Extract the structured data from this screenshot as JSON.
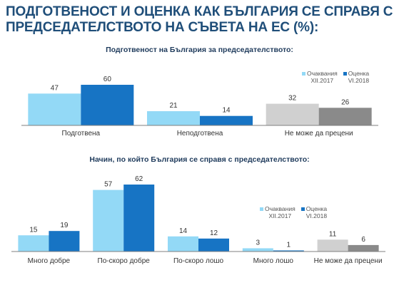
{
  "title": {
    "line1": "ПОДГОТВЕНОСТ И ОЦЕНКА КАК БЪЛГАРИЯ СЕ СПРАВЯ С",
    "line2": "ПРЕДСЕДАТЕЛСТВОТО НА СЪВЕТА НА ЕС (%):"
  },
  "colors": {
    "dec2017": "#93d9f6",
    "jun2018": "#1774c4",
    "other_light": "#d0d0d0",
    "other_dark": "#8a8a8a",
    "baseline": "#7f7f7f"
  },
  "legend": {
    "items": [
      {
        "line1": "Очаквания",
        "line2": "XII.2017"
      },
      {
        "line1": "Оценка",
        "line2": "VI.2018"
      }
    ]
  },
  "chart_data": [
    {
      "type": "bar",
      "title": "Подготвеност на България за председателството:",
      "categories": [
        "Подготвена",
        "Неподготвена",
        "Не може да прецени"
      ],
      "series": [
        {
          "name": "Очаквания XII.2017",
          "values": [
            47,
            21,
            32
          ]
        },
        {
          "name": "Оценка VI.2018",
          "values": [
            60,
            14,
            26
          ]
        }
      ],
      "ylim": [
        0,
        60
      ],
      "grid": false,
      "legend_position": "top-right"
    },
    {
      "type": "bar",
      "title": "Начин, по който България се справя с председателството:",
      "categories": [
        "Много добре",
        "По-скоро добре",
        "По-скоро лошо",
        "Много лошо",
        "Не може да прецени"
      ],
      "series": [
        {
          "name": "Очаквания XII.2017",
          "values": [
            15,
            57,
            14,
            3,
            11
          ]
        },
        {
          "name": "Оценка VI.2018",
          "values": [
            19,
            62,
            12,
            1,
            6
          ]
        }
      ],
      "ylim": [
        0,
        62
      ],
      "grid": false,
      "legend_position": "center-right"
    }
  ]
}
